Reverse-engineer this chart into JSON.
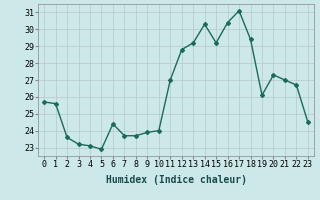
{
  "x": [
    0,
    1,
    2,
    3,
    4,
    5,
    6,
    7,
    8,
    9,
    10,
    11,
    12,
    13,
    14,
    15,
    16,
    17,
    18,
    19,
    20,
    21,
    22,
    23
  ],
  "y": [
    25.7,
    25.6,
    23.6,
    23.2,
    23.1,
    22.9,
    24.4,
    23.7,
    23.7,
    23.9,
    24.0,
    27.0,
    28.8,
    29.2,
    30.3,
    29.2,
    30.4,
    31.1,
    29.4,
    26.1,
    27.3,
    27.0,
    26.7,
    24.5
  ],
  "line_color": "#1a6b5a",
  "marker": "D",
  "marker_size": 2.0,
  "bg_color": "#cce8e8",
  "grid_color": "#b8c8c8",
  "xlabel": "Humidex (Indice chaleur)",
  "ylim": [
    22.5,
    31.5
  ],
  "xlim": [
    -0.5,
    23.5
  ],
  "yticks": [
    23,
    24,
    25,
    26,
    27,
    28,
    29,
    30,
    31
  ],
  "xticks": [
    0,
    1,
    2,
    3,
    4,
    5,
    6,
    7,
    8,
    9,
    10,
    11,
    12,
    13,
    14,
    15,
    16,
    17,
    18,
    19,
    20,
    21,
    22,
    23
  ],
  "xlabel_fontsize": 7,
  "tick_fontsize": 6,
  "line_width": 1.0
}
